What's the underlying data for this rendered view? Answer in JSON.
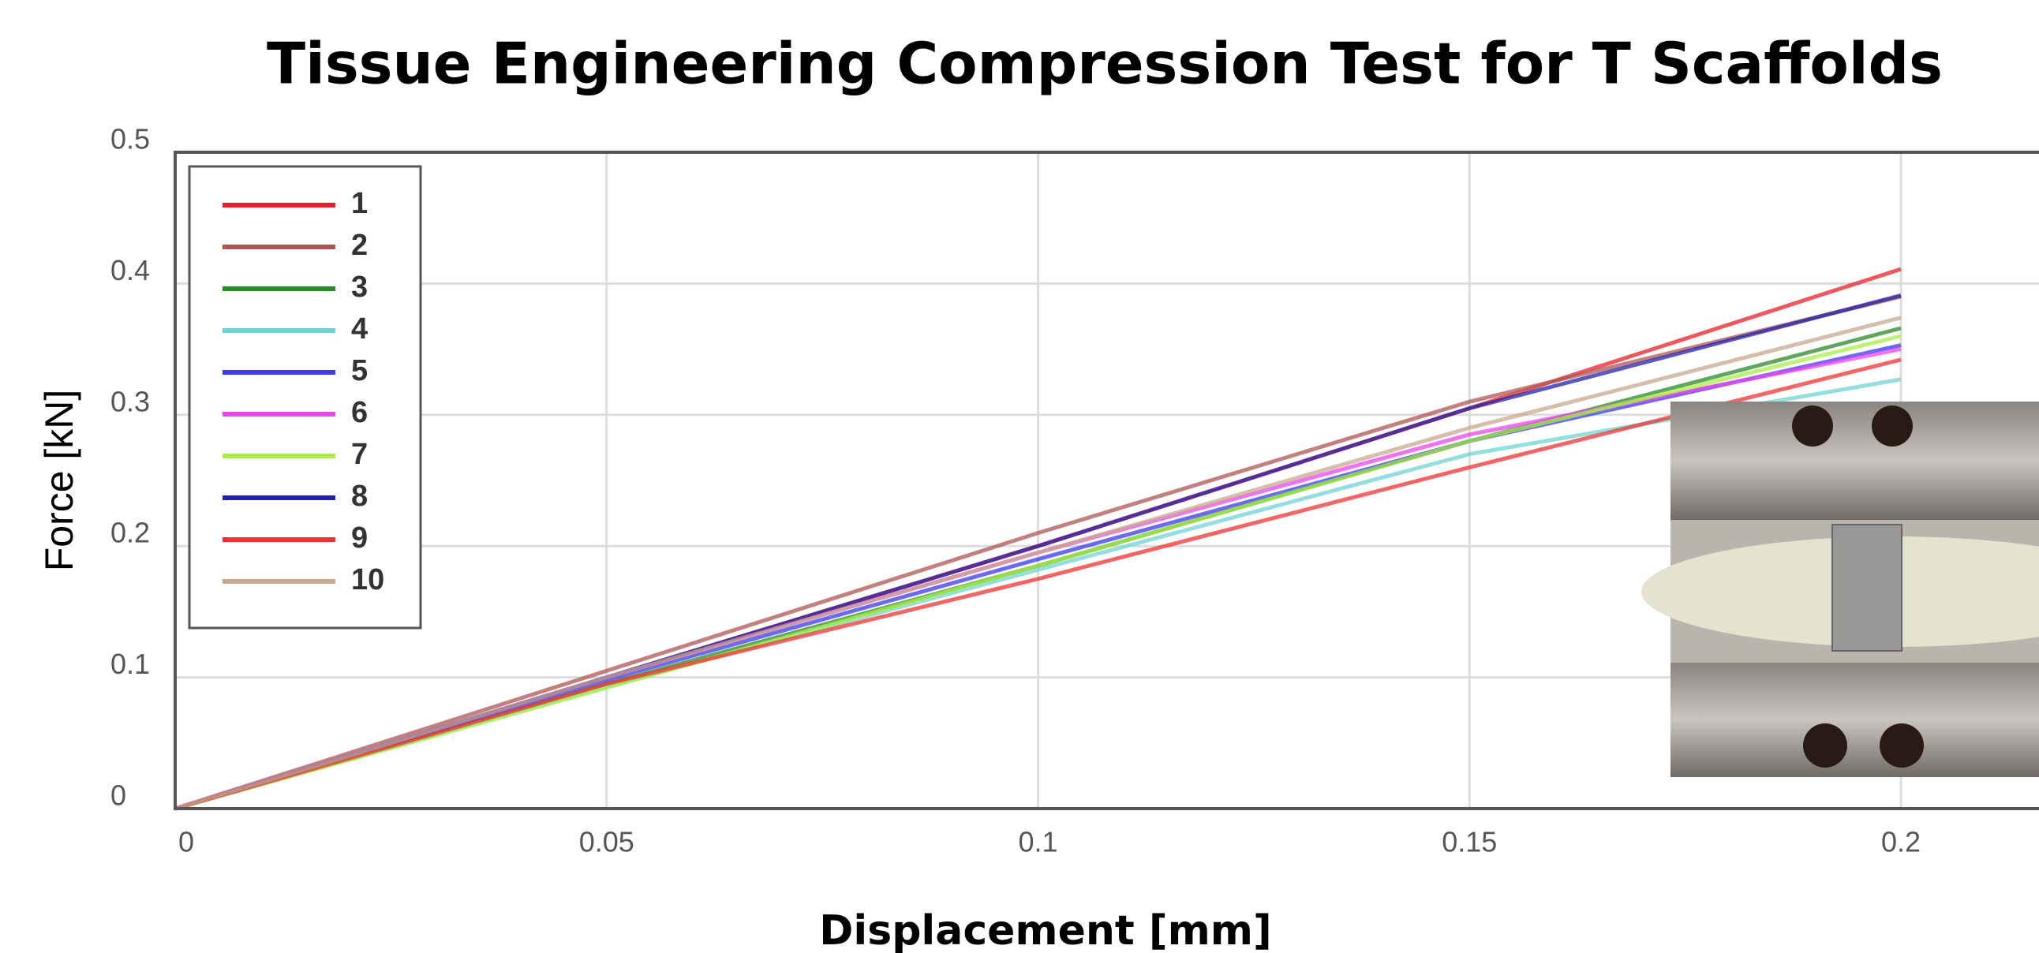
{
  "chart_data": {
    "type": "line",
    "title": "Tissue Engineering Compression Test for T Scaffolds",
    "x_label": "Displacement [mm]",
    "y_label": "Force [kN]",
    "x": [
      0,
      0.05,
      0.1,
      0.15,
      0.2
    ],
    "xlim": [
      0,
      0.216
    ],
    "xticks": [
      0,
      0.05,
      0.1,
      0.15,
      0.2
    ],
    "ylim": [
      0,
      0.5
    ],
    "yticks": [
      0,
      0.1,
      0.2,
      0.3,
      0.4,
      0.5
    ],
    "grid": true,
    "legend": "upper-left",
    "series": [
      {
        "name": "1",
        "color": "#e8202a",
        "values": [
          0,
          0.1,
          0.2,
          0.305,
          0.411
        ]
      },
      {
        "name": "2",
        "color": "#b05555",
        "values": [
          0,
          0.105,
          0.21,
          0.31,
          0.39
        ]
      },
      {
        "name": "3",
        "color": "#2a8a2a",
        "values": [
          0,
          0.095,
          0.185,
          0.28,
          0.366
        ]
      },
      {
        "name": "4",
        "color": "#6fd3d3",
        "values": [
          0,
          0.093,
          0.182,
          0.27,
          0.327
        ]
      },
      {
        "name": "5",
        "color": "#3a3aee",
        "values": [
          0,
          0.098,
          0.19,
          0.28,
          0.353
        ]
      },
      {
        "name": "6",
        "color": "#ee44ee",
        "values": [
          0,
          0.1,
          0.195,
          0.285,
          0.35
        ]
      },
      {
        "name": "7",
        "color": "#aaee44",
        "values": [
          0,
          0.092,
          0.185,
          0.28,
          0.36
        ]
      },
      {
        "name": "8",
        "color": "#2222aa",
        "values": [
          0,
          0.1,
          0.2,
          0.305,
          0.391
        ]
      },
      {
        "name": "9",
        "color": "#ee3333",
        "values": [
          0,
          0.095,
          0.175,
          0.26,
          0.342
        ]
      },
      {
        "name": "10",
        "color": "#c8a890",
        "values": [
          0,
          0.1,
          0.195,
          0.29,
          0.374
        ]
      }
    ]
  }
}
